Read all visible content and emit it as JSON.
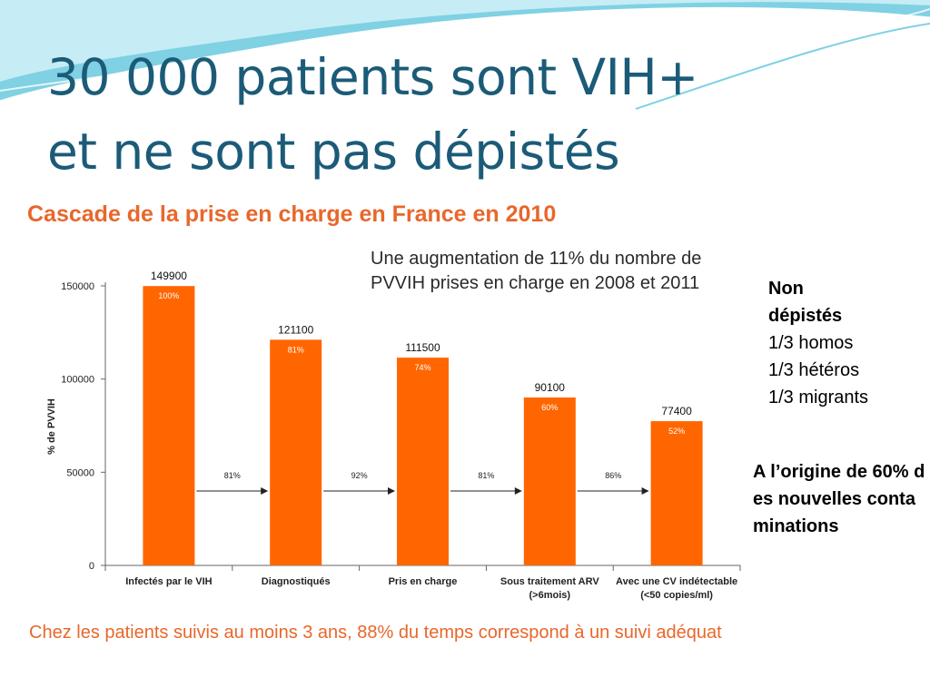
{
  "slide": {
    "title_line1": "30 000 patients sont VIH+",
    "title_line2": "et ne sont pas dépistés"
  },
  "chart_data": {
    "type": "bar",
    "title": "Cascade de la prise en charge en France en 2010",
    "ylabel": "% de PVVIH",
    "ylim": [
      0,
      150000
    ],
    "yticks": [
      0,
      50000,
      100000,
      150000
    ],
    "categories": [
      [
        "Infectés par le VIH"
      ],
      [
        "Diagnostiqués"
      ],
      [
        "Pris en charge"
      ],
      [
        "Sous traitement ARV",
        "(>6mois)"
      ],
      [
        "Avec une CV indétectable",
        "(<50 copies/ml)"
      ]
    ],
    "values": [
      149900,
      121100,
      111500,
      90100,
      77400
    ],
    "value_labels": [
      "149900",
      "121100",
      "111500",
      "90100",
      "77400"
    ],
    "percent_labels": [
      "100%",
      "81%",
      "74%",
      "60%",
      "52%"
    ],
    "transitions": [
      "81%",
      "92%",
      "81%",
      "86%"
    ],
    "note": "Une augmentation de 11% du nombre de PVVIH prises en charge en 2008 et 2011",
    "footnote": "Chez les patients suivis au moins 3 ans, 88% du temps correspond à un suivi adéquat"
  },
  "side_notes": {
    "heading_line1": "Non",
    "heading_line2": "dépistés",
    "items": [
      "1/3 homos",
      "1/3 hétéros",
      "1/3 migrants"
    ]
  },
  "origin_note": "A l’origine de 60% des nouvelles contaminations",
  "colors": {
    "bar": "#ff6600",
    "title": "#1b5b78",
    "accent": "#e8672b"
  }
}
